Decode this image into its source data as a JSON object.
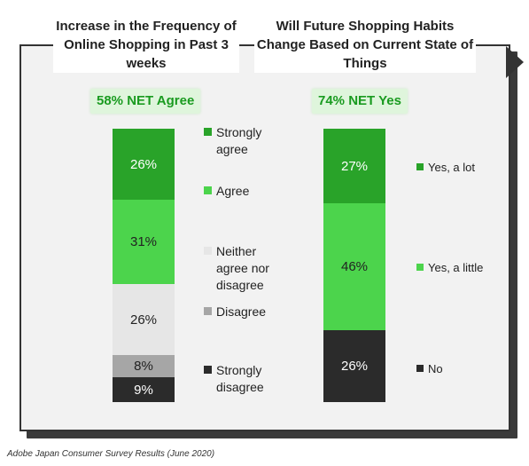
{
  "chart_data": [
    {
      "type": "bar",
      "stacked": true,
      "title": "Increase in the Frequency of Online Shopping in Past 3 weeks",
      "net_label": "58% NET Agree",
      "series": [
        {
          "name": "Strongly agree",
          "value": 26,
          "label": "26%",
          "color": "#29a329",
          "text_color": "#ffffff"
        },
        {
          "name": "Agree",
          "value": 31,
          "label": "31%",
          "color": "#4cd44c",
          "text_color": "#222222"
        },
        {
          "name": "Neither agree nor disagree",
          "value": 26,
          "label": "26%",
          "color": "#e6e6e6",
          "text_color": "#222222"
        },
        {
          "name": "Disagree",
          "value": 8,
          "label": "8%",
          "color": "#a6a6a6",
          "text_color": "#222222"
        },
        {
          "name": "Strongly disagree",
          "value": 9,
          "label": "9%",
          "color": "#2b2b2b",
          "text_color": "#ffffff"
        }
      ]
    },
    {
      "type": "bar",
      "stacked": true,
      "title": "Will Future Shopping Habits Change Based on Current State of Things",
      "net_label": "74% NET Yes",
      "series": [
        {
          "name": "Yes, a lot",
          "value": 27,
          "label": "27%",
          "color": "#29a329",
          "text_color": "#ffffff"
        },
        {
          "name": "Yes, a little",
          "value": 46,
          "label": "46%",
          "color": "#4cd44c",
          "text_color": "#222222"
        },
        {
          "name": "No",
          "value": 26,
          "label": "26%",
          "color": "#2b2b2b",
          "text_color": "#ffffff"
        }
      ]
    }
  ],
  "legend1": [
    {
      "label": "Strongly agree",
      "color": "#29a329"
    },
    {
      "label": "Agree",
      "color": "#4cd44c"
    },
    {
      "label": "Neither agree nor disagree",
      "color": "#e6e6e6"
    },
    {
      "label": "Disagree",
      "color": "#a6a6a6"
    },
    {
      "label": "Strongly disagree",
      "color": "#2b2b2b"
    }
  ],
  "legend2": [
    {
      "label": "Yes, a lot",
      "color": "#29a329"
    },
    {
      "label": "Yes, a little",
      "color": "#4cd44c"
    },
    {
      "label": "No",
      "color": "#2b2b2b"
    }
  ],
  "footer": "Adobe Japan Consumer Survey Results (June 2020)"
}
